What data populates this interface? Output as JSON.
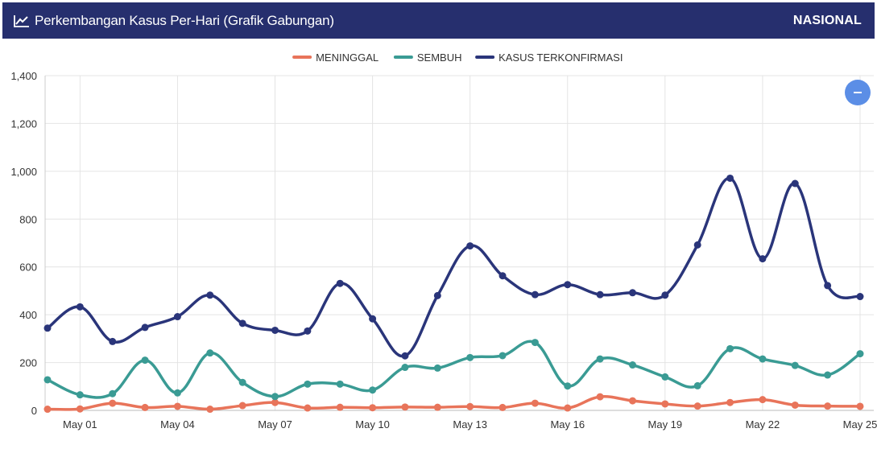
{
  "header": {
    "title": "Perkembangan Kasus Per-Hari (Grafik Gabungan)",
    "region": "NASIONAL",
    "icon": "line-chart-icon"
  },
  "controls": {
    "collapse_icon": "minus-icon"
  },
  "chart_data": {
    "type": "line",
    "x": [
      "Apr 30",
      "May 01",
      "May 02",
      "May 03",
      "May 04",
      "May 05",
      "May 06",
      "May 07",
      "May 08",
      "May 09",
      "May 10",
      "May 11",
      "May 12",
      "May 13",
      "May 14",
      "May 15",
      "May 16",
      "May 17",
      "May 18",
      "May 19",
      "May 20",
      "May 21",
      "May 22",
      "May 23",
      "May 24",
      "May 25"
    ],
    "x_tick_labels": [
      "May 01",
      "May 04",
      "May 07",
      "May 10",
      "May 13",
      "May 16",
      "May 19",
      "May 22",
      "May 25"
    ],
    "series": [
      {
        "name": "MENINGGAL",
        "color": "#e8745a",
        "values": [
          5,
          6,
          30,
          12,
          17,
          5,
          20,
          33,
          10,
          13,
          11,
          14,
          13,
          16,
          12,
          30,
          10,
          57,
          40,
          27,
          18,
          33,
          45,
          22,
          18,
          17
        ]
      },
      {
        "name": "SEMBUH",
        "color": "#3a9b94",
        "values": [
          128,
          65,
          70,
          210,
          73,
          240,
          117,
          58,
          110,
          110,
          85,
          180,
          177,
          221,
          229,
          284,
          102,
          215,
          190,
          140,
          103,
          258,
          215,
          188,
          148,
          237
        ]
      },
      {
        "name": "KASUS TERKONFIRMASI",
        "color": "#2a357a",
        "values": [
          344,
          433,
          288,
          347,
          392,
          482,
          364,
          335,
          332,
          531,
          383,
          228,
          480,
          688,
          563,
          484,
          526,
          484,
          492,
          482,
          692,
          971,
          634,
          949,
          522,
          476
        ]
      }
    ],
    "ylim": [
      0,
      1400
    ],
    "y_ticks": [
      0,
      200,
      400,
      600,
      800,
      1000,
      1200,
      1400
    ],
    "y_tick_labels": [
      "0",
      "200",
      "400",
      "600",
      "800",
      "1,000",
      "1,200",
      "1,400"
    ],
    "grid": true,
    "legend": "top-center",
    "title": "",
    "xlabel": "",
    "ylabel": ""
  }
}
